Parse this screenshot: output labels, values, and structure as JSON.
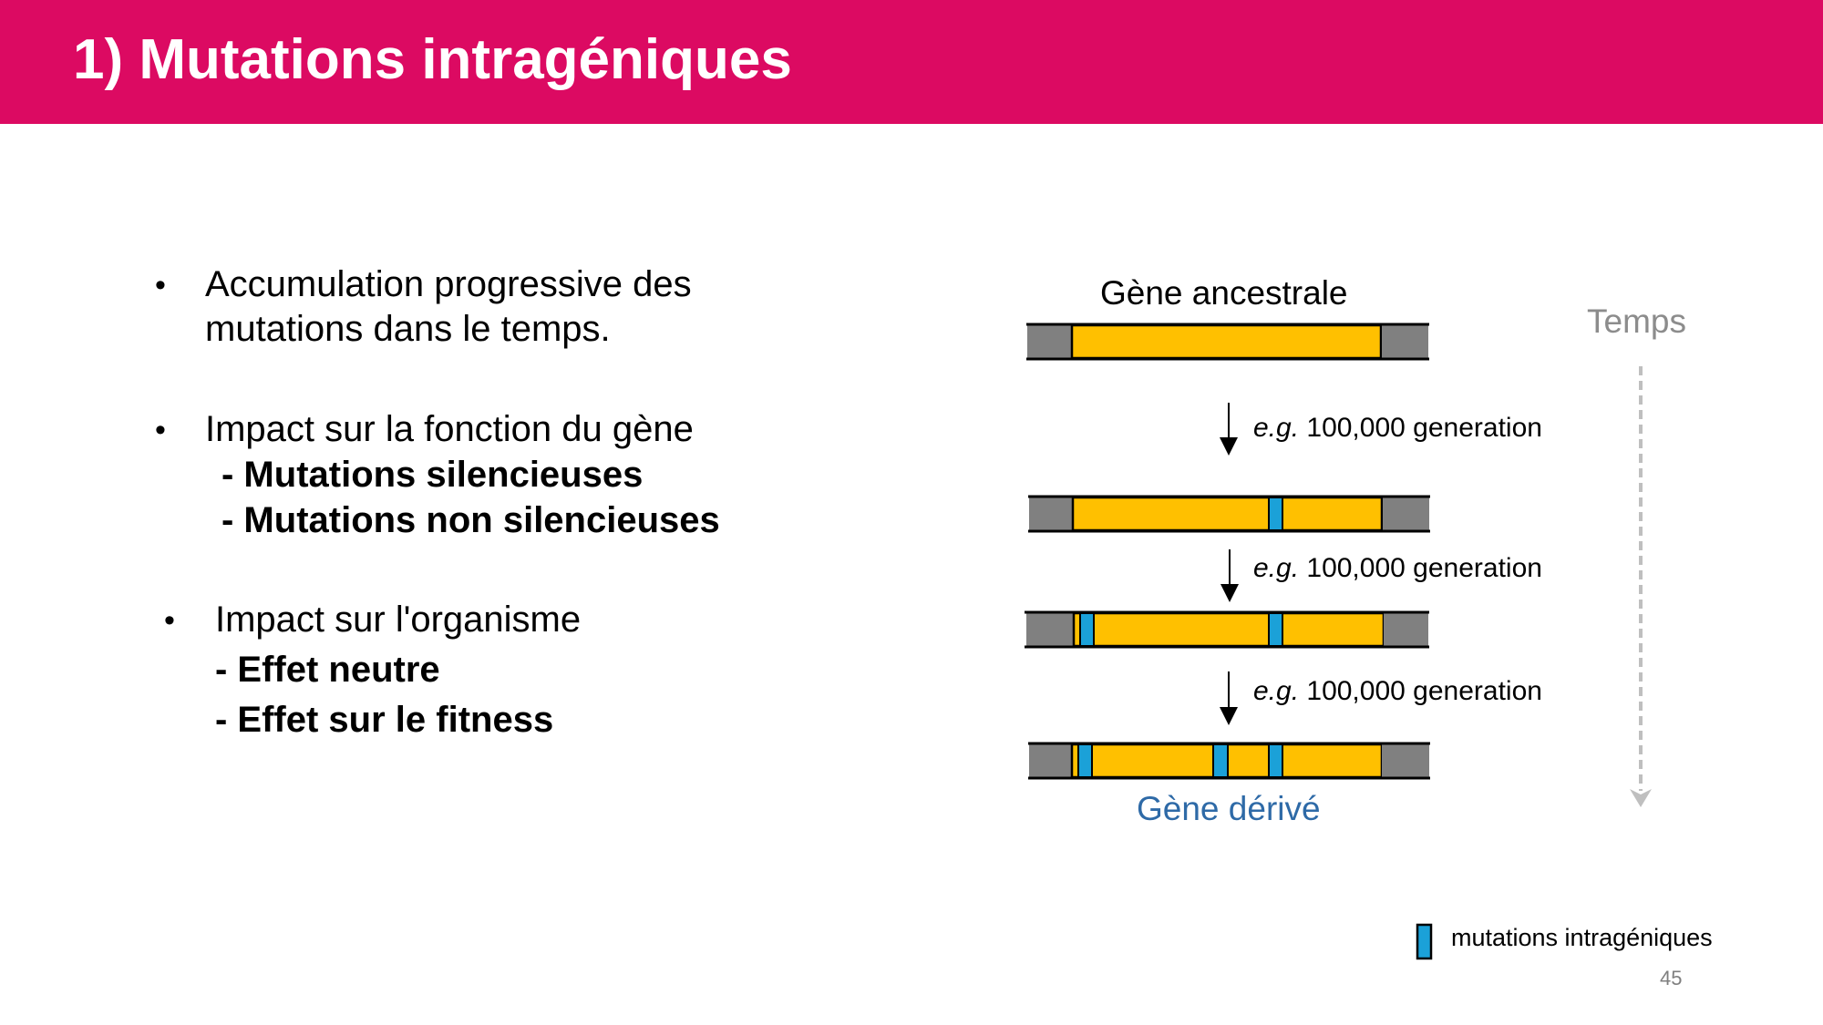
{
  "header": {
    "title": "1) Mutations intragéniques",
    "background_color": "#dc0a62"
  },
  "content": {
    "bullets": [
      {
        "lines": [
          "Accumulation progressive des",
          "mutations dans le temps."
        ],
        "sub_items": []
      },
      {
        "lines": [
          "Impact sur la fonction du gène"
        ],
        "sub_items": [
          "-  Mutations silencieuses",
          "-  Mutations non silencieuses"
        ]
      },
      {
        "lines": [
          "Impact sur l'organisme"
        ],
        "sub_items": [
          "-  Effet neutre",
          "-  Effet sur le fitness"
        ]
      }
    ]
  },
  "diagram": {
    "ancestral_label": "Gène ancestrale",
    "derived_label": "Gène dérivé",
    "time_label": "Temps",
    "step_labels": [
      {
        "prefix": "e.g.",
        "text": " 100,000 generation"
      },
      {
        "prefix": "e.g.",
        "text": " 100,000 generation"
      },
      {
        "prefix": "e.g.",
        "text": " 100,000 generation"
      }
    ],
    "legend_label": "mutations intragéniques",
    "colors": {
      "flank": "#808080",
      "gene": "#ffc000",
      "mutation": "#1ba1d8",
      "derived_label": "#2e6aa7",
      "time_arrow": "#bfbfbf"
    },
    "genes": [
      {
        "name": "ancestral",
        "mutations": 0
      },
      {
        "name": "after-step-1",
        "mutations": 1
      },
      {
        "name": "after-step-2",
        "mutations": 2
      },
      {
        "name": "derived",
        "mutations": 3
      }
    ]
  },
  "footer": {
    "page_number": "45"
  }
}
